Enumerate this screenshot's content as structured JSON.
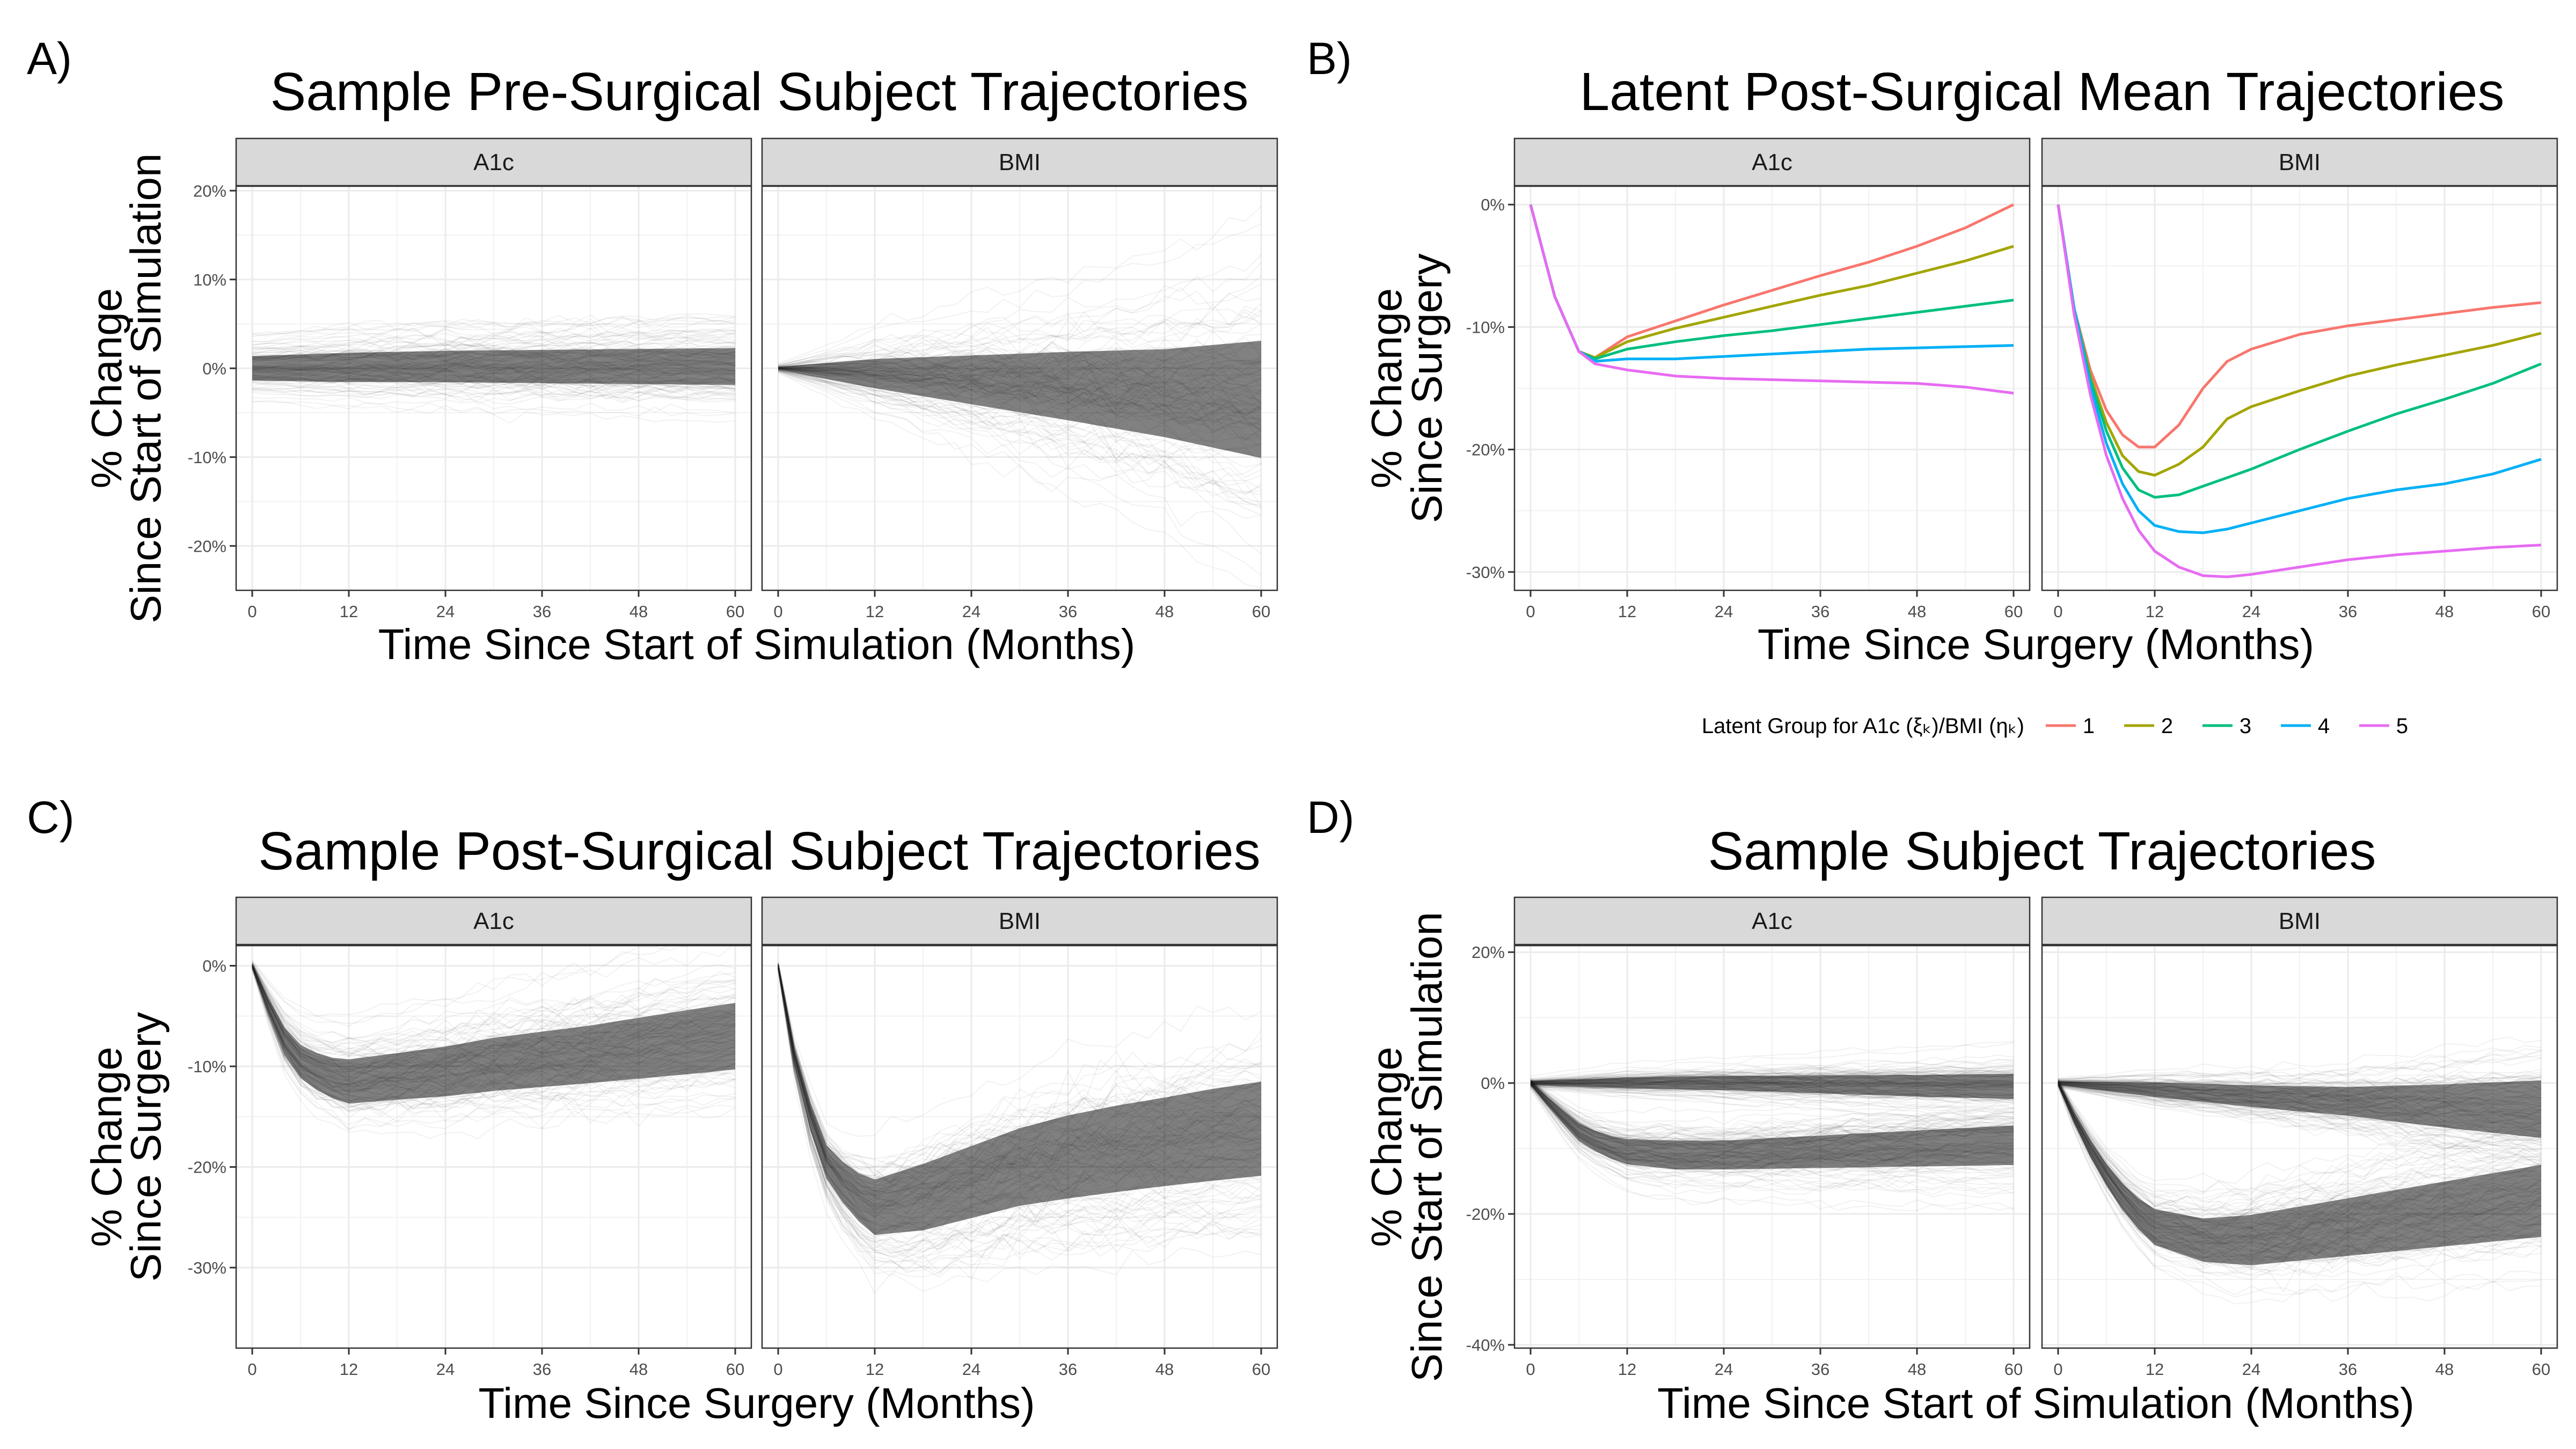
{
  "panel_letters": [
    "A)",
    "B)",
    "C)",
    "D)"
  ],
  "legend": {
    "title": "Latent Group for A1c (ξₖ)/BMI (ηₖ)",
    "items": [
      {
        "label": "1",
        "color": "#F8766D"
      },
      {
        "label": "2",
        "color": "#A3A500"
      },
      {
        "label": "3",
        "color": "#00BF7D"
      },
      {
        "label": "4",
        "color": "#00B0F6"
      },
      {
        "label": "5",
        "color": "#E76BF3"
      }
    ]
  },
  "chart_data": [
    {
      "type": "line",
      "title": "Sample Pre-Surgical Subject Trajectories",
      "xlabel": "Time Since Start of Simulation (Months)",
      "ylabel": [
        "% Change",
        "Since Start of Simulation"
      ],
      "facets": [
        "A1c",
        "BMI"
      ],
      "xlim": [
        -2,
        62
      ],
      "ylim": [
        -25,
        20.5
      ],
      "xticks": [
        0,
        12,
        24,
        36,
        48,
        60
      ],
      "xtick_labels": [
        "0",
        "12",
        "24",
        "36",
        "48",
        "60"
      ],
      "yticks": [
        -20,
        -10,
        0,
        10,
        20
      ],
      "ytick_labels": [
        "-20%",
        "-10%",
        "0%",
        "10%",
        "20%"
      ],
      "grid": true,
      "series": [
        {
          "facet": "A1c",
          "x": [
            0,
            12,
            24,
            36,
            48,
            60
          ],
          "mean": [
            0,
            0.1,
            0.2,
            0.2,
            0.2,
            0.2
          ],
          "spread": [
            2.5,
            3,
            3.2,
            3.4,
            3.6,
            3.8
          ]
        },
        {
          "facet": "BMI",
          "x": [
            0,
            12,
            24,
            36,
            48,
            60
          ],
          "mean": [
            0,
            -0.6,
            -1.3,
            -2.0,
            -2.8,
            -3.5
          ],
          "spread": [
            0.3,
            3,
            5,
            7,
            9,
            12
          ]
        }
      ]
    },
    {
      "type": "line",
      "title": "Latent Post-Surgical Mean Trajectories",
      "xlabel": "Time Since Surgery (Months)",
      "ylabel": [
        "% Change",
        "Since Surgery"
      ],
      "facets": [
        "A1c",
        "BMI"
      ],
      "xlim": [
        -2,
        62
      ],
      "ylim": [
        -31.5,
        1.5
      ],
      "xticks": [
        0,
        12,
        24,
        36,
        48,
        60
      ],
      "xtick_labels": [
        "0",
        "12",
        "24",
        "36",
        "48",
        "60"
      ],
      "yticks": [
        -30,
        -20,
        -10,
        0
      ],
      "ytick_labels": [
        "-30%",
        "-20%",
        "-10%",
        "0%"
      ],
      "grid": true,
      "series": [
        {
          "facet": "A1c",
          "name": "1",
          "color": "#F8766D",
          "x": [
            0,
            3,
            6,
            8,
            12,
            18,
            24,
            30,
            36,
            42,
            48,
            54,
            60
          ],
          "y": [
            0,
            -7.5,
            -12,
            -12.5,
            -10.8,
            -9.5,
            -8.2,
            -7,
            -5.8,
            -4.7,
            -3.4,
            -1.9,
            0
          ]
        },
        {
          "facet": "A1c",
          "name": "2",
          "color": "#A3A500",
          "x": [
            0,
            3,
            6,
            8,
            12,
            18,
            24,
            30,
            36,
            42,
            48,
            54,
            60
          ],
          "y": [
            0,
            -7.5,
            -12,
            -12.5,
            -11.2,
            -10.1,
            -9.2,
            -8.3,
            -7.4,
            -6.6,
            -5.6,
            -4.6,
            -3.4
          ]
        },
        {
          "facet": "A1c",
          "name": "3",
          "color": "#00BF7D",
          "x": [
            0,
            3,
            6,
            8,
            12,
            18,
            24,
            30,
            36,
            42,
            48,
            54,
            60
          ],
          "y": [
            0,
            -7.5,
            -12,
            -12.6,
            -11.8,
            -11.2,
            -10.7,
            -10.3,
            -9.8,
            -9.3,
            -8.8,
            -8.3,
            -7.8
          ]
        },
        {
          "facet": "A1c",
          "name": "4",
          "color": "#00B0F6",
          "x": [
            0,
            3,
            6,
            8,
            12,
            18,
            24,
            30,
            36,
            42,
            48,
            54,
            60
          ],
          "y": [
            0,
            -7.5,
            -12,
            -12.8,
            -12.6,
            -12.6,
            -12.4,
            -12.2,
            -12,
            -11.8,
            -11.7,
            -11.6,
            -11.5
          ]
        },
        {
          "facet": "A1c",
          "name": "5",
          "color": "#E76BF3",
          "x": [
            0,
            3,
            6,
            8,
            12,
            18,
            24,
            30,
            36,
            42,
            48,
            54,
            60
          ],
          "y": [
            0,
            -7.5,
            -12,
            -13,
            -13.5,
            -14,
            -14.2,
            -14.3,
            -14.4,
            -14.5,
            -14.6,
            -14.9,
            -15.4
          ]
        },
        {
          "facet": "BMI",
          "name": "1",
          "color": "#F8766D",
          "x": [
            0,
            2,
            4,
            6,
            8,
            10,
            12,
            15,
            18,
            21,
            24,
            30,
            36,
            42,
            48,
            54,
            60
          ],
          "y": [
            0,
            -8.5,
            -13.5,
            -16.8,
            -18.8,
            -19.8,
            -19.8,
            -18,
            -15,
            -12.8,
            -11.8,
            -10.6,
            -9.9,
            -9.4,
            -8.9,
            -8.4,
            -8
          ]
        },
        {
          "facet": "BMI",
          "name": "2",
          "color": "#A3A500",
          "x": [
            0,
            2,
            4,
            6,
            8,
            10,
            12,
            15,
            18,
            21,
            24,
            30,
            36,
            42,
            48,
            54,
            60
          ],
          "y": [
            0,
            -8.5,
            -14,
            -17.8,
            -20.5,
            -21.8,
            -22.1,
            -21.2,
            -19.8,
            -17.5,
            -16.5,
            -15.2,
            -14,
            -13.1,
            -12.3,
            -11.5,
            -10.5
          ]
        },
        {
          "facet": "BMI",
          "name": "3",
          "color": "#00BF7D",
          "x": [
            0,
            2,
            4,
            6,
            8,
            10,
            12,
            15,
            18,
            21,
            24,
            30,
            36,
            42,
            48,
            54,
            60
          ],
          "y": [
            0,
            -8.5,
            -14.3,
            -18.5,
            -21.5,
            -23.3,
            -23.9,
            -23.7,
            -23,
            -22.3,
            -21.6,
            -20,
            -18.5,
            -17.1,
            -15.9,
            -14.6,
            -13
          ]
        },
        {
          "facet": "BMI",
          "name": "4",
          "color": "#00B0F6",
          "x": [
            0,
            2,
            4,
            6,
            8,
            10,
            12,
            15,
            18,
            21,
            24,
            30,
            36,
            42,
            48,
            54,
            60
          ],
          "y": [
            0,
            -8.5,
            -14.8,
            -19.5,
            -22.8,
            -25,
            -26.2,
            -26.7,
            -26.8,
            -26.5,
            -26,
            -25,
            -24,
            -23.3,
            -22.8,
            -22,
            -20.8
          ]
        },
        {
          "facet": "BMI",
          "name": "5",
          "color": "#E76BF3",
          "x": [
            0,
            2,
            4,
            6,
            8,
            10,
            12,
            15,
            18,
            21,
            24,
            30,
            36,
            42,
            48,
            54,
            60
          ],
          "y": [
            0,
            -9,
            -15.5,
            -20.5,
            -24,
            -26.6,
            -28.3,
            -29.6,
            -30.3,
            -30.4,
            -30.2,
            -29.6,
            -29,
            -28.6,
            -28.3,
            -28,
            -27.8
          ]
        }
      ]
    },
    {
      "type": "line",
      "title": "Sample Post-Surgical Subject Trajectories",
      "xlabel": "Time Since Surgery (Months)",
      "ylabel": [
        "% Change",
        "Since Surgery"
      ],
      "facets": [
        "A1c",
        "BMI"
      ],
      "xlim": [
        -2,
        62
      ],
      "ylim": [
        -38,
        2
      ],
      "xticks": [
        0,
        12,
        24,
        36,
        48,
        60
      ],
      "xtick_labels": [
        "0",
        "12",
        "24",
        "36",
        "48",
        "60"
      ],
      "yticks": [
        -30,
        -20,
        -10,
        0
      ],
      "ytick_labels": [
        "-30%",
        "-20%",
        "-10%",
        "0%"
      ],
      "grid": true,
      "series": [
        {
          "facet": "A1c",
          "x": [
            0,
            2,
            4,
            6,
            9,
            12,
            18,
            24,
            30,
            36,
            42,
            48,
            54,
            60
          ],
          "mean": [
            0,
            -4,
            -7.5,
            -9.5,
            -11,
            -11.5,
            -11,
            -10.5,
            -9.8,
            -9.3,
            -8.8,
            -8.2,
            -7.6,
            -7
          ],
          "spread": [
            0.3,
            1.5,
            2.5,
            3,
            3.5,
            4,
            4.2,
            4.5,
            4.8,
            5,
            5.2,
            5.5,
            5.8,
            6
          ]
        },
        {
          "facet": "BMI",
          "x": [
            0,
            2,
            4,
            6,
            9,
            12,
            18,
            24,
            30,
            36,
            42,
            48,
            54,
            60
          ],
          "mean": [
            0,
            -9,
            -15,
            -19.5,
            -22.5,
            -24,
            -23,
            -21.5,
            -20,
            -19,
            -18.2,
            -17.5,
            -16.8,
            -16.2
          ],
          "spread": [
            0.3,
            1.5,
            2.5,
            3,
            4,
            5,
            6,
            6.5,
            7,
            7.5,
            7.8,
            8,
            8.3,
            8.5
          ]
        }
      ]
    },
    {
      "type": "line",
      "title": "Sample Subject Trajectories",
      "xlabel": "Time Since Start of Simulation (Months)",
      "ylabel": [
        "% Change",
        "Since Start of Simulation"
      ],
      "facets": [
        "A1c",
        "BMI"
      ],
      "xlim": [
        -2,
        62
      ],
      "ylim": [
        -40.5,
        21
      ],
      "xticks": [
        0,
        12,
        24,
        36,
        48,
        60
      ],
      "xtick_labels": [
        "0",
        "12",
        "24",
        "36",
        "48",
        "60"
      ],
      "yticks": [
        -40,
        -20,
        0,
        20
      ],
      "ytick_labels": [
        "-40%",
        "-20%",
        "0%",
        "20%"
      ],
      "grid": true,
      "series": [
        {
          "facet": "A1c",
          "x": [
            0,
            12,
            24,
            36,
            48,
            60
          ],
          "mean": [
            0,
            0,
            0,
            -0.2,
            -0.4,
            -0.5
          ],
          "spread": [
            0.5,
            1.5,
            2,
            2.5,
            3,
            3.5
          ]
        },
        {
          "facet": "A1c",
          "x": [
            0,
            3,
            6,
            9,
            12,
            18,
            24,
            36,
            48,
            60
          ],
          "mean": [
            0,
            -4,
            -7.5,
            -9.5,
            -10.5,
            -11,
            -11,
            -10.5,
            -10,
            -9.5
          ],
          "spread": [
            0.5,
            1.5,
            2.5,
            3,
            3.5,
            4,
            4,
            4.5,
            5,
            5.5
          ]
        },
        {
          "facet": "BMI",
          "x": [
            0,
            12,
            24,
            36,
            48,
            60
          ],
          "mean": [
            0,
            -1,
            -2,
            -2.8,
            -3.5,
            -4
          ],
          "spread": [
            0.5,
            2,
            3,
            4,
            6,
            8
          ]
        },
        {
          "facet": "BMI",
          "x": [
            0,
            3,
            6,
            9,
            12,
            18,
            24,
            36,
            48,
            60
          ],
          "mean": [
            0,
            -8,
            -14,
            -19,
            -22,
            -24,
            -24,
            -22,
            -20,
            -18
          ],
          "spread": [
            0.5,
            2,
            3,
            4,
            5,
            6,
            7,
            8,
            9,
            10
          ]
        }
      ]
    }
  ]
}
